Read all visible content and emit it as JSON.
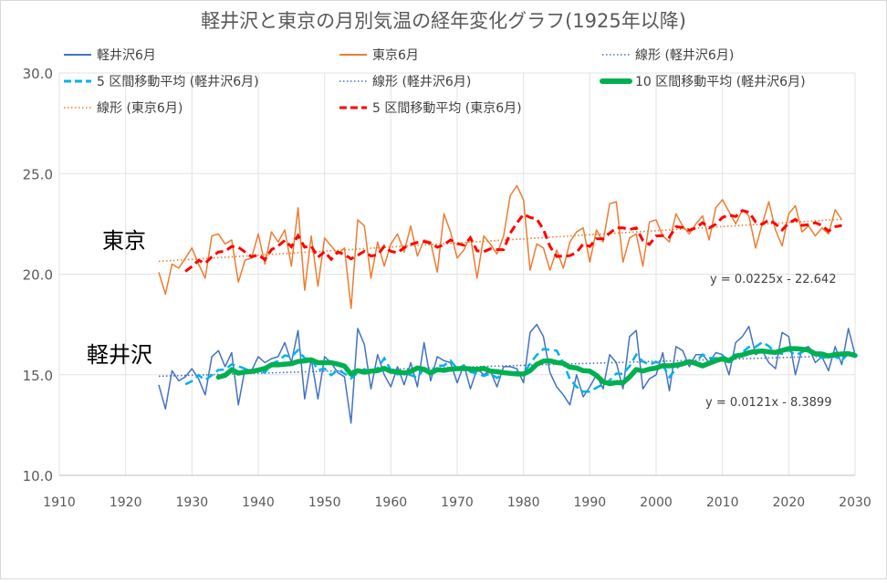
{
  "chart_data": {
    "type": "line",
    "title": "軽井沢と東京の月別気温の経年変化グラフ(1925年以降)",
    "xlim": [
      1910,
      2030
    ],
    "ylim": [
      10.0,
      30.0
    ],
    "x_ticks": [
      1910,
      1920,
      1930,
      1940,
      1950,
      1960,
      1970,
      1980,
      1990,
      2000,
      2010,
      2020,
      2030
    ],
    "y_ticks": [
      "10.0",
      "15.0",
      "20.0",
      "25.0",
      "30.0"
    ],
    "grid": "vertical and horizontal",
    "legend_position": "top",
    "region_labels": {
      "tokyo": "東京",
      "karuizawa": "軽井沢"
    },
    "equations": {
      "tokyo": "y = 0.0225x - 22.642",
      "karuizawa": "y = 0.0121x - 8.3899"
    },
    "legend": [
      {
        "label": "軽井沢6月",
        "color": "#4472C4",
        "style": "solid"
      },
      {
        "label": "東京6月",
        "color": "#ED7D31",
        "style": "solid"
      },
      {
        "label": "線形 (軽井沢6月)",
        "color": "#4472C4",
        "style": "dotted"
      },
      {
        "label": "5 区間移動平均 (軽井沢6月)",
        "color": "#00B0F0",
        "style": "dashed"
      },
      {
        "label": "線形 (軽井沢6月)",
        "color": "#4472C4",
        "style": "dotted"
      },
      {
        "label": "10 区間移動平均 (軽井沢6月)",
        "color": "#00B050",
        "style": "thick"
      },
      {
        "label": "線形 (東京6月)",
        "color": "#ED7D31",
        "style": "dotted"
      },
      {
        "label": "5 区間移動平均 (東京6月)",
        "color": "#FF0000",
        "style": "dashed"
      }
    ],
    "series": [
      {
        "name": "軽井沢6月",
        "key": "karuizawa",
        "color": "#4472C4",
        "x_start": 1925,
        "values": [
          14.5,
          13.3,
          15.2,
          14.7,
          14.9,
          15.3,
          14.8,
          14.0,
          15.9,
          16.2,
          15.4,
          16.1,
          13.5,
          15.3,
          15.2,
          15.9,
          15.6,
          15.8,
          15.9,
          16.6,
          15.6,
          17.2,
          13.8,
          15.8,
          13.8,
          15.9,
          15.6,
          15.1,
          14.9,
          12.6,
          17.3,
          16.5,
          14.3,
          16.0,
          15.0,
          14.4,
          15.4,
          14.5,
          15.6,
          14.4,
          16.6,
          14.7,
          15.9,
          15.7,
          15.6,
          14.6,
          15.5,
          14.3,
          15.3,
          15.0,
          15.2,
          14.4,
          15.4,
          15.4,
          15.3,
          14.6,
          17.1,
          17.5,
          16.9,
          15.1,
          14.4,
          14.0,
          13.5,
          15.0,
          13.9,
          14.4,
          15.0,
          14.3,
          16.0,
          15.6,
          14.3,
          16.9,
          17.2,
          14.3,
          14.8,
          15.0,
          16.1,
          14.2,
          16.4,
          16.2,
          15.4,
          16.0,
          16.0,
          15.6,
          16.1,
          16.0,
          15.0,
          16.6,
          16.9,
          17.4,
          16.0,
          16.2,
          15.6,
          15.3,
          17.1,
          16.9,
          15.0,
          16.3,
          16.4,
          15.6,
          15.9,
          15.2,
          16.4,
          15.5,
          17.3,
          16.0
        ]
      },
      {
        "name": "東京6月",
        "key": "tokyo",
        "color": "#ED7D31",
        "x_start": 1925,
        "values": [
          20.1,
          19.0,
          20.5,
          20.3,
          20.8,
          21.3,
          20.5,
          19.8,
          21.9,
          22.0,
          21.5,
          21.7,
          19.6,
          20.7,
          20.8,
          22.0,
          20.5,
          22.1,
          21.6,
          22.2,
          20.4,
          23.3,
          19.2,
          21.9,
          19.4,
          21.8,
          21.4,
          21.0,
          21.3,
          18.3,
          22.7,
          22.4,
          19.8,
          21.6,
          20.4,
          21.5,
          22.0,
          21.1,
          22.4,
          20.9,
          21.7,
          21.6,
          20.1,
          23.0,
          22.1,
          20.8,
          21.2,
          21.9,
          19.8,
          21.9,
          21.5,
          21.0,
          21.9,
          23.9,
          24.4,
          23.7,
          20.2,
          21.5,
          21.3,
          20.2,
          21.2,
          20.3,
          21.6,
          22.1,
          22.3,
          20.6,
          22.2,
          21.6,
          23.5,
          23.6,
          20.6,
          21.8,
          22.0,
          20.4,
          22.6,
          22.7,
          21.9,
          21.6,
          23.0,
          22.4,
          22.0,
          22.5,
          22.9,
          21.7,
          23.3,
          23.7,
          23.1,
          22.5,
          23.2,
          22.9,
          21.3,
          22.5,
          23.6,
          22.2,
          21.4,
          23.0,
          23.4,
          22.1,
          22.4,
          21.9,
          22.3,
          22.0,
          23.2,
          22.7
        ]
      }
    ]
  }
}
